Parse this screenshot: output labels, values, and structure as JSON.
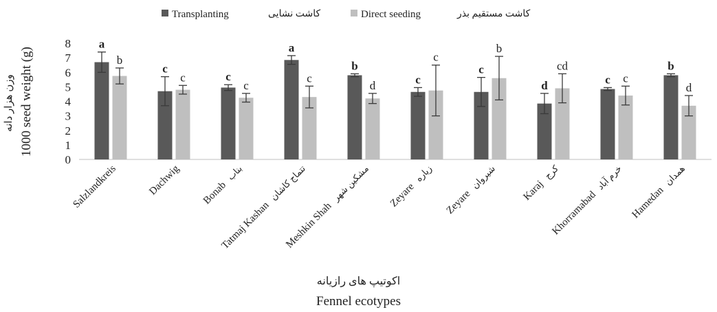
{
  "chart_data": {
    "type": "bar",
    "title": "",
    "xlabel": "Fennel ecotypes",
    "xlabel_fa": "اکوتیپ های رازیانه",
    "ylabel": "1000 seed weight (g)",
    "ylabel_fa": "وزن هزار دانه",
    "ylim": [
      0,
      8
    ],
    "yticks": [
      0,
      1,
      2,
      3,
      4,
      5,
      6,
      7,
      8
    ],
    "grid": false,
    "legend_position": "top",
    "categories": [
      {
        "en": "Salzlandkreis",
        "fa": ""
      },
      {
        "en": "Dachwig",
        "fa": ""
      },
      {
        "en": "Bonab",
        "fa": "بناب"
      },
      {
        "en": "Tatmaj Kashan",
        "fa": "تتماج کاشان"
      },
      {
        "en": "Meshkin Shah",
        "fa": "مشکین شهر"
      },
      {
        "en": "Zeyare",
        "fa": "زیاره"
      },
      {
        "en": "Zeyare",
        "fa": "شیروان"
      },
      {
        "en": "Karaj",
        "fa": "کرج"
      },
      {
        "en": "Khorramabad",
        "fa": "خرم آباد"
      },
      {
        "en": "Hamedan",
        "fa": "همدان"
      }
    ],
    "series": [
      {
        "name": "Transplanting",
        "name_fa": "کاشت نشایی",
        "color": "#595959",
        "values": [
          6.7,
          4.7,
          4.95,
          6.85,
          5.8,
          4.65,
          4.65,
          3.85,
          4.85,
          5.8
        ],
        "errors": [
          0.7,
          1.0,
          0.2,
          0.3,
          0.1,
          0.3,
          1.0,
          0.7,
          0.1,
          0.1
        ],
        "letters": [
          "a",
          "c",
          "c",
          "a",
          "b",
          "c",
          "c",
          "d",
          "c",
          "b"
        ]
      },
      {
        "name": "Direct seeding",
        "name_fa": "کاشت مستقیم بذر",
        "color": "#bfbfbf",
        "values": [
          5.75,
          4.8,
          4.25,
          4.3,
          4.2,
          4.75,
          5.6,
          4.9,
          4.4,
          3.7
        ],
        "errors": [
          0.55,
          0.3,
          0.3,
          0.75,
          0.35,
          1.75,
          1.5,
          1.0,
          0.65,
          0.7
        ],
        "letters": [
          "b",
          "c",
          "c",
          "c",
          "d",
          "c",
          "b",
          "cd",
          "c",
          "d"
        ]
      }
    ]
  }
}
